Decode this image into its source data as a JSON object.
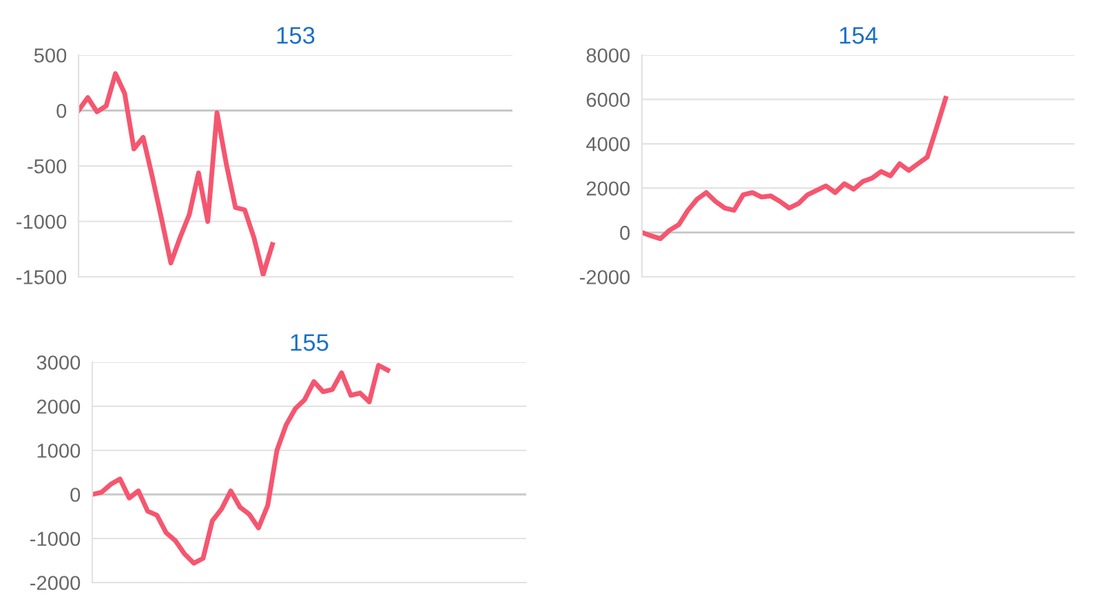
{
  "chart_data": [
    {
      "type": "line",
      "title": "153",
      "categories": [
        null,
        null,
        null,
        null,
        null,
        null,
        null,
        null,
        null,
        null,
        null,
        null,
        null,
        null,
        null,
        null,
        null,
        null,
        null,
        null,
        null,
        null,
        null,
        null,
        null,
        null,
        null,
        null,
        null,
        null,
        null,
        null,
        null,
        null,
        null,
        null,
        null,
        null,
        null,
        null,
        null,
        null,
        null,
        null,
        null,
        null,
        null,
        null
      ],
      "series": [
        {
          "color": "#f5566f",
          "values": [
            0,
            117,
            -12,
            42,
            333,
            154,
            -346,
            -242,
            -600,
            -980,
            -1375,
            -1146,
            -938,
            -563,
            -1000,
            -20,
            -479,
            -875,
            -896,
            -1146,
            -1479,
            -1208,
            null,
            null,
            null,
            null,
            null,
            null,
            null,
            null,
            null,
            null,
            null,
            null,
            null,
            null,
            null,
            null,
            null,
            null,
            null,
            null,
            null,
            null,
            null,
            null,
            null,
            null
          ]
        }
      ],
      "ylim": [
        -1500,
        500
      ],
      "yticks": [
        -1500,
        -1000,
        -500,
        0,
        500
      ],
      "grid": "y",
      "marker": "none",
      "line_style": "solid",
      "tick_labels": "y"
    },
    {
      "type": "line",
      "title": "154",
      "categories": [
        null,
        null,
        null,
        null,
        null,
        null,
        null,
        null,
        null,
        null,
        null,
        null,
        null,
        null,
        null,
        null,
        null,
        null,
        null,
        null,
        null,
        null,
        null,
        null,
        null,
        null,
        null,
        null,
        null,
        null,
        null,
        null,
        null,
        null,
        null,
        null,
        null,
        null,
        null,
        null,
        null,
        null,
        null,
        null,
        null,
        null,
        null,
        null
      ],
      "series": [
        {
          "color": "#f5566f",
          "values": [
            0,
            -150,
            -280,
            100,
            350,
            1000,
            1500,
            1800,
            1400,
            1100,
            1000,
            1700,
            1800,
            1600,
            1650,
            1400,
            1100,
            1300,
            1700,
            1900,
            2100,
            1800,
            2200,
            1950,
            2300,
            2450,
            2750,
            2550,
            3100,
            2800,
            3100,
            3400,
            4700,
            6050,
            null,
            null,
            null,
            null,
            null,
            null,
            null,
            null,
            null,
            null,
            null,
            null,
            null,
            null
          ]
        }
      ],
      "ylim": [
        -2000,
        8000
      ],
      "yticks": [
        -2000,
        0,
        2000,
        4000,
        6000,
        8000
      ],
      "grid": "y",
      "marker": "none",
      "line_style": "solid",
      "tick_labels": "y"
    },
    {
      "type": "line",
      "title": "155",
      "categories": [
        null,
        null,
        null,
        null,
        null,
        null,
        null,
        null,
        null,
        null,
        null,
        null,
        null,
        null,
        null,
        null,
        null,
        null,
        null,
        null,
        null,
        null,
        null,
        null,
        null,
        null,
        null,
        null,
        null,
        null,
        null,
        null,
        null,
        null,
        null,
        null,
        null,
        null,
        null,
        null,
        null,
        null,
        null,
        null,
        null,
        null,
        null,
        null
      ],
      "series": [
        {
          "color": "#f5566f",
          "values": [
            0,
            50,
            230,
            350,
            -80,
            80,
            -380,
            -470,
            -870,
            -1050,
            -1350,
            -1560,
            -1450,
            -600,
            -330,
            80,
            -290,
            -450,
            -760,
            -250,
            1000,
            1580,
            1950,
            2150,
            2560,
            2330,
            2380,
            2760,
            2250,
            2300,
            2100,
            2930,
            2820,
            null,
            null,
            null,
            null,
            null,
            null,
            null,
            null,
            null,
            null,
            null,
            null,
            null,
            null,
            null
          ]
        }
      ],
      "ylim": [
        -2000,
        3000
      ],
      "yticks": [
        -2000,
        -1000,
        0,
        1000,
        2000,
        3000
      ],
      "grid": "y",
      "marker": "none",
      "line_style": "solid",
      "tick_labels": "y"
    }
  ]
}
